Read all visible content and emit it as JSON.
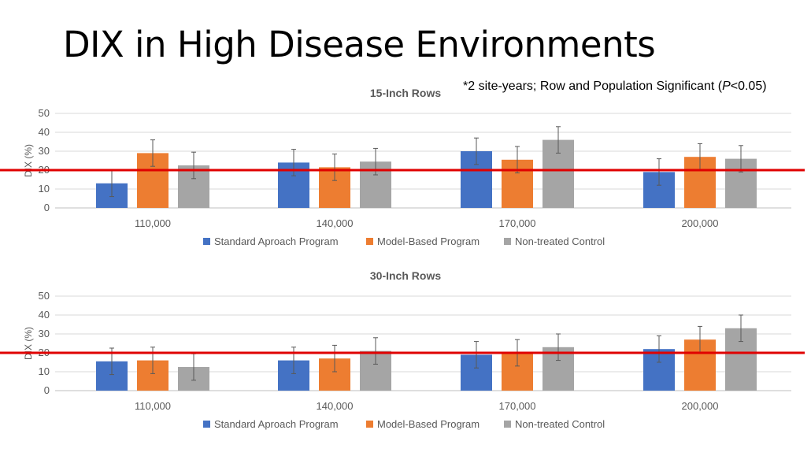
{
  "slide": {
    "title": "DIX in High Disease Environments",
    "note_prefix": "*2 site-years; Row and Population Significant (",
    "note_p": "P",
    "note_suffix": "<0.05)"
  },
  "colors": {
    "standard": "#4472C4",
    "model": "#ED7D31",
    "control": "#A5A5A5",
    "threshold": "#E00000",
    "grid": "#D9D9D9",
    "text": "#595959"
  },
  "chart_data": [
    {
      "type": "bar",
      "title": "15-Inch Rows",
      "ylabel": "DIX (%)",
      "ylim": [
        0,
        50
      ],
      "yticks": [
        0,
        10,
        20,
        30,
        40,
        50
      ],
      "categories": [
        "110,000",
        "140,000",
        "170,000",
        "200,000"
      ],
      "series": [
        {
          "name": "Standard Aproach Program",
          "values": [
            13,
            24,
            30,
            19
          ],
          "errors": [
            7,
            7,
            7,
            7
          ]
        },
        {
          "name": "Model-Based Program",
          "values": [
            29,
            21.5,
            25.5,
            27
          ],
          "errors": [
            7,
            7,
            7,
            7
          ]
        },
        {
          "name": "Non-treated Control",
          "values": [
            22.5,
            24.5,
            36,
            26
          ],
          "errors": [
            7,
            7,
            7,
            7
          ]
        }
      ],
      "threshold": 20,
      "grid": true,
      "legend": "bottom"
    },
    {
      "type": "bar",
      "title": "30-Inch Rows",
      "ylabel": "DIX (%)",
      "ylim": [
        0,
        50
      ],
      "yticks": [
        0,
        10,
        20,
        30,
        40,
        50
      ],
      "categories": [
        "110,000",
        "140,000",
        "170,000",
        "200,000"
      ],
      "series": [
        {
          "name": "Standard Aproach Program",
          "values": [
            15.5,
            16,
            19,
            22
          ],
          "errors": [
            7,
            7,
            7,
            7
          ]
        },
        {
          "name": "Model-Based Program",
          "values": [
            16,
            17,
            20,
            27
          ],
          "errors": [
            7,
            7,
            7,
            7
          ]
        },
        {
          "name": "Non-treated Control",
          "values": [
            12.5,
            21,
            23,
            33
          ],
          "errors": [
            7,
            7,
            7,
            7
          ]
        }
      ],
      "threshold": 20,
      "grid": true,
      "legend": "bottom"
    }
  ]
}
